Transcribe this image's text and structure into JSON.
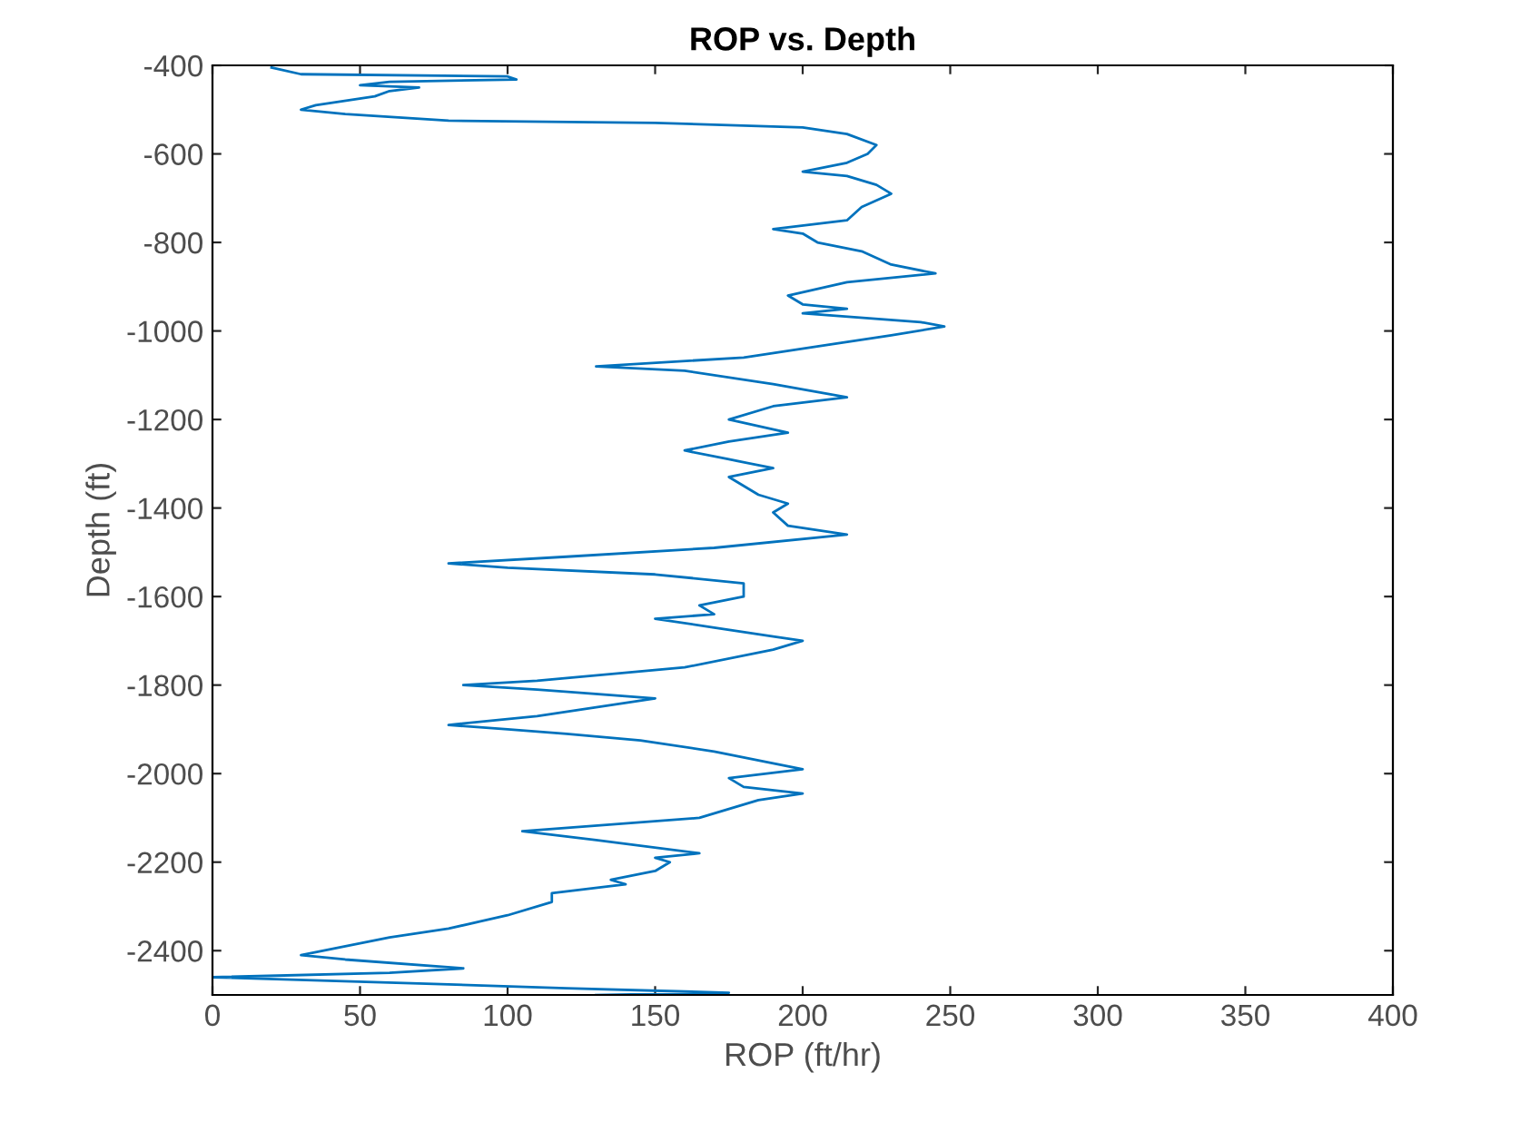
{
  "chart_data": {
    "type": "line",
    "title": "ROP vs. Depth",
    "xlabel": "ROP (ft/hr)",
    "ylabel": "Depth (ft)",
    "xlim": [
      0,
      400
    ],
    "ylim": [
      -2500,
      -400
    ],
    "xticks": [
      0,
      50,
      100,
      150,
      200,
      250,
      300,
      350,
      400
    ],
    "yticks": [
      -2400,
      -2200,
      -2000,
      -1800,
      -1600,
      -1400,
      -1200,
      -1000,
      -800,
      -600,
      -400
    ],
    "grid": false,
    "marker": "none",
    "line_style": "solid",
    "series": [
      {
        "color": "#0072bd",
        "x": [
          20,
          30,
          100,
          103,
          60,
          50,
          70,
          60,
          55,
          35,
          30,
          45,
          80,
          150,
          200,
          215,
          225,
          222,
          215,
          200,
          215,
          225,
          230,
          220,
          215,
          190,
          200,
          205,
          220,
          230,
          245,
          215,
          195,
          200,
          215,
          200,
          240,
          248,
          230,
          210,
          180,
          130,
          160,
          190,
          215,
          190,
          175,
          195,
          175,
          160,
          175,
          190,
          175,
          180,
          185,
          195,
          190,
          195,
          215,
          170,
          120,
          80,
          100,
          150,
          180,
          180,
          165,
          170,
          150,
          170,
          190,
          200,
          190,
          160,
          110,
          85,
          110,
          150,
          130,
          110,
          80,
          100,
          120,
          145,
          170,
          200,
          175,
          180,
          200,
          185,
          165,
          105,
          130,
          165,
          150,
          155,
          150,
          135,
          140,
          115,
          115,
          100,
          80,
          60,
          45,
          30,
          45,
          85,
          60,
          0,
          75,
          120,
          175,
          130
        ],
        "values": [
          -405,
          -420,
          -425,
          -432,
          -437,
          -445,
          -450,
          -458,
          -470,
          -490,
          -500,
          -510,
          -525,
          -530,
          -540,
          -555,
          -580,
          -600,
          -620,
          -640,
          -650,
          -670,
          -690,
          -720,
          -750,
          -770,
          -780,
          -800,
          -820,
          -850,
          -870,
          -890,
          -920,
          -940,
          -950,
          -960,
          -980,
          -990,
          -1010,
          -1030,
          -1060,
          -1080,
          -1090,
          -1120,
          -1150,
          -1170,
          -1200,
          -1230,
          -1250,
          -1270,
          -1290,
          -1310,
          -1330,
          -1350,
          -1370,
          -1390,
          -1410,
          -1440,
          -1460,
          -1490,
          -1510,
          -1525,
          -1535,
          -1550,
          -1570,
          -1600,
          -1620,
          -1640,
          -1650,
          -1670,
          -1690,
          -1700,
          -1720,
          -1760,
          -1790,
          -1800,
          -1810,
          -1830,
          -1850,
          -1870,
          -1890,
          -1900,
          -1910,
          -1925,
          -1950,
          -1990,
          -2010,
          -2030,
          -2045,
          -2060,
          -2100,
          -2130,
          -2150,
          -2180,
          -2190,
          -2200,
          -2220,
          -2240,
          -2250,
          -2270,
          -2290,
          -2320,
          -2350,
          -2370,
          -2390,
          -2410,
          -2420,
          -2440,
          -2450,
          -2460,
          -2475,
          -2485,
          -2495,
          -2500
        ]
      }
    ]
  }
}
